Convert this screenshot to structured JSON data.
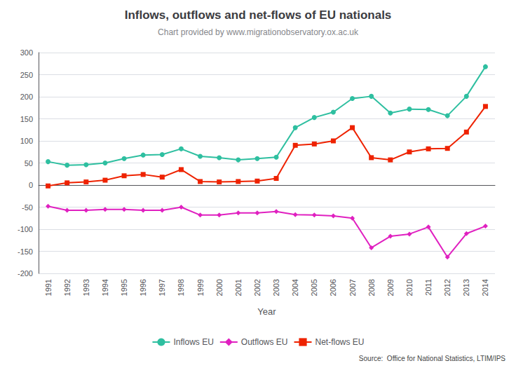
{
  "chart_data": {
    "type": "line",
    "title": "Inflows, outflows and net-flows of EU nationals",
    "subtitle": "Chart provided by www.migrationobservatory.ox.ac.uk",
    "source": "Source:  Office for National Statistics, LTIM/IPS",
    "xlabel": "Year",
    "categories": [
      1991,
      1992,
      1993,
      1994,
      1995,
      1996,
      1997,
      1998,
      1999,
      2000,
      2001,
      2002,
      2003,
      2004,
      2005,
      2006,
      2007,
      2008,
      2009,
      2010,
      2011,
      2012,
      2013,
      2014
    ],
    "series": [
      {
        "name": "Inflows EU",
        "color": "#2ebfa0",
        "marker": "circle",
        "values": [
          53,
          45,
          46,
          50,
          60,
          68,
          69,
          82,
          65,
          62,
          57,
          60,
          63,
          130,
          153,
          165,
          196,
          201,
          163,
          172,
          171,
          157,
          201,
          268
        ]
      },
      {
        "name": "Outflows EU",
        "color": "#e020c0",
        "marker": "diamond",
        "values": [
          -48,
          -57,
          -57,
          -55,
          -55,
          -57,
          -57,
          -50,
          -68,
          -68,
          -63,
          -63,
          -60,
          -67,
          -68,
          -70,
          -75,
          -142,
          -116,
          -111,
          -95,
          -163,
          -110,
          -93
        ]
      },
      {
        "name": "Net-flows EU",
        "color": "#ee2200",
        "marker": "square",
        "values": [
          -2,
          5,
          7,
          11,
          21,
          24,
          18,
          35,
          8,
          7,
          8,
          9,
          15,
          90,
          93,
          100,
          130,
          62,
          57,
          75,
          82,
          83,
          120,
          178
        ]
      }
    ],
    "ylim": [
      -200,
      300
    ],
    "yticks": [
      -200,
      -150,
      -100,
      -50,
      0,
      50,
      100,
      150,
      200,
      250,
      300
    ],
    "grid": true,
    "legend": "bottom"
  }
}
